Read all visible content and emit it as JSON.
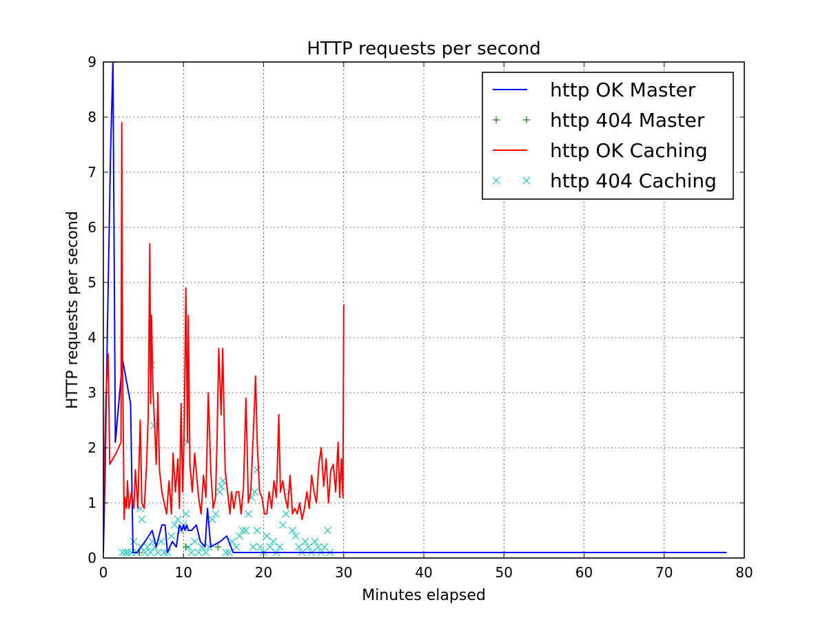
{
  "chart_data": {
    "type": "line",
    "title": "HTTP requests per second",
    "xlabel": "Minutes elapsed",
    "ylabel": "HTTP requests per second",
    "xlim": [
      0,
      80
    ],
    "ylim": [
      0,
      9
    ],
    "xticks": [
      0,
      10,
      20,
      30,
      40,
      50,
      60,
      70,
      80
    ],
    "yticks": [
      0,
      1,
      2,
      3,
      4,
      5,
      6,
      7,
      8,
      9
    ],
    "grid": true,
    "legend_position": "top-right",
    "series": [
      {
        "name": "http OK Master",
        "style": "line",
        "color": "#0000ff",
        "x": [
          0.0,
          0.2,
          0.5,
          0.9,
          1.2,
          1.5,
          2.4,
          3.4,
          3.7,
          4.2,
          5.2,
          6.1,
          6.6,
          7.3,
          7.7,
          8.0,
          8.6,
          9.1,
          9.5,
          9.8,
          10.0,
          10.2,
          10.4,
          10.6,
          11.0,
          11.6,
          12.1,
          12.7,
          13.0,
          13.4,
          14.6,
          15.4,
          16.2,
          17.0,
          20.0,
          30.0,
          40.0,
          50.0,
          60.0,
          70.0,
          77.8
        ],
        "y": [
          0.1,
          1.4,
          4.1,
          7.4,
          9.0,
          2.1,
          3.6,
          2.8,
          0.1,
          0.1,
          0.3,
          0.5,
          0.2,
          0.6,
          0.6,
          0.1,
          0.3,
          0.2,
          0.6,
          0.5,
          0.6,
          0.5,
          0.6,
          0.5,
          0.5,
          0.6,
          0.3,
          0.2,
          0.9,
          0.2,
          0.3,
          0.4,
          0.1,
          0.1,
          0.1,
          0.1,
          0.1,
          0.1,
          0.1,
          0.1,
          0.1
        ]
      },
      {
        "name": "http 404 Master",
        "style": "plus",
        "color": "#008000",
        "x": [
          4.5,
          10.3,
          14.3
        ],
        "y": [
          0.1,
          0.2,
          0.2
        ]
      },
      {
        "name": "http OK Caching",
        "style": "line",
        "color": "#ff0000",
        "x": [
          0.0,
          0.3,
          0.6,
          0.8,
          1.6,
          2.2,
          2.3,
          2.4,
          2.6,
          2.7,
          2.9,
          3.0,
          3.2,
          3.5,
          3.8,
          4.0,
          4.3,
          4.6,
          4.8,
          5.1,
          5.4,
          5.6,
          5.8,
          5.9,
          6.0,
          6.2,
          6.4,
          6.6,
          6.8,
          7.0,
          7.3,
          7.6,
          7.9,
          8.2,
          8.5,
          8.7,
          9.0,
          9.3,
          9.5,
          9.7,
          9.9,
          10.1,
          10.3,
          10.5,
          10.6,
          10.8,
          11.1,
          11.4,
          11.7,
          11.9,
          12.2,
          12.5,
          12.8,
          13.1,
          13.4,
          13.7,
          14.0,
          14.2,
          14.4,
          14.7,
          14.9,
          15.2,
          15.5,
          15.8,
          16.0,
          16.3,
          16.6,
          16.9,
          17.2,
          17.5,
          17.8,
          18.1,
          18.4,
          18.7,
          19.0,
          19.2,
          19.5,
          19.8,
          20.1,
          20.4,
          20.7,
          21.0,
          21.3,
          21.6,
          21.9,
          22.1,
          22.4,
          22.7,
          23.0,
          23.3,
          23.6,
          23.9,
          24.2,
          24.5,
          24.8,
          25.1,
          25.4,
          25.7,
          26.0,
          26.3,
          26.6,
          26.9,
          27.2,
          27.5,
          27.8,
          28.1,
          28.4,
          28.7,
          29.0,
          29.3,
          29.5,
          29.7,
          29.9,
          30.0
        ],
        "y": [
          0.7,
          2.9,
          3.7,
          1.7,
          1.9,
          2.1,
          7.9,
          3.5,
          0.7,
          1.1,
          0.9,
          1.4,
          0.9,
          1.2,
          0.9,
          1.6,
          0.9,
          2.5,
          1.0,
          0.9,
          1.7,
          2.6,
          5.7,
          2.8,
          4.4,
          3.0,
          2.4,
          1.7,
          3.0,
          1.6,
          1.2,
          1.0,
          0.8,
          1.4,
          0.8,
          1.9,
          1.2,
          1.8,
          0.9,
          2.8,
          1.2,
          2.4,
          4.9,
          2.1,
          4.4,
          1.7,
          1.2,
          1.9,
          1.4,
          1.1,
          0.8,
          1.5,
          1.1,
          3.0,
          1.6,
          0.9,
          1.1,
          2.2,
          3.8,
          2.6,
          3.8,
          1.6,
          1.2,
          0.8,
          1.2,
          0.9,
          1.2,
          1.2,
          0.8,
          1.3,
          2.9,
          1.0,
          1.2,
          2.2,
          3.3,
          2.1,
          1.2,
          1.1,
          0.8,
          0.8,
          1.2,
          0.9,
          1.4,
          1.1,
          2.6,
          1.2,
          1.4,
          1.1,
          0.9,
          1.5,
          0.8,
          0.9,
          0.8,
          1.0,
          0.7,
          0.9,
          1.2,
          0.9,
          1.5,
          1.2,
          1.0,
          1.7,
          2.0,
          1.3,
          1.8,
          1.0,
          1.6,
          1.7,
          1.2,
          2.1,
          1.1,
          1.8,
          1.1,
          4.6
        ]
      },
      {
        "name": "http 404 Caching",
        "style": "x",
        "color": "#00bfbf",
        "x": [
          2.4,
          2.8,
          3.1,
          3.5,
          3.8,
          4.2,
          4.6,
          4.8,
          5.2,
          5.5,
          5.9,
          6.1,
          6.4,
          6.8,
          7.2,
          7.6,
          8.0,
          8.5,
          8.9,
          9.3,
          9.6,
          10.0,
          10.3,
          10.6,
          11.0,
          11.4,
          11.9,
          12.3,
          12.8,
          13.2,
          13.6,
          14.0,
          14.5,
          14.9,
          15.3,
          15.7,
          16.1,
          16.6,
          17.0,
          17.4,
          17.8,
          18.1,
          18.5,
          18.9,
          19.2,
          19.6,
          20.0,
          20.4,
          20.8,
          21.2,
          21.6,
          22.0,
          22.4,
          22.8,
          23.2,
          23.6,
          24.0,
          24.4,
          24.8,
          25.2,
          25.6,
          26.0,
          26.4,
          26.8,
          27.2,
          27.6,
          28.0,
          28.3,
          4.7,
          6.0,
          6.3,
          10.5,
          19.2,
          14.7,
          18.7
        ],
        "y": [
          0.1,
          0.1,
          0.1,
          0.1,
          0.3,
          0.1,
          0.9,
          0.7,
          0.1,
          0.2,
          0.1,
          0.3,
          0.2,
          0.1,
          0.3,
          0.1,
          0.1,
          0.4,
          0.6,
          0.7,
          0.5,
          0.6,
          0.8,
          0.2,
          0.1,
          0.3,
          0.1,
          0.2,
          0.1,
          0.2,
          0.7,
          0.8,
          1.2,
          1.4,
          0.1,
          0.1,
          0.3,
          0.2,
          0.4,
          0.5,
          0.5,
          0.8,
          1.1,
          1.2,
          0.5,
          0.2,
          0.1,
          0.4,
          0.2,
          0.3,
          0.1,
          0.2,
          0.6,
          0.8,
          1.2,
          0.5,
          0.4,
          0.2,
          0.1,
          0.3,
          0.2,
          0.1,
          0.3,
          0.2,
          0.1,
          0.2,
          0.5,
          0.1,
          0.2,
          3.5,
          2.4,
          2.1,
          1.6,
          1.3,
          0.2
        ]
      }
    ]
  }
}
